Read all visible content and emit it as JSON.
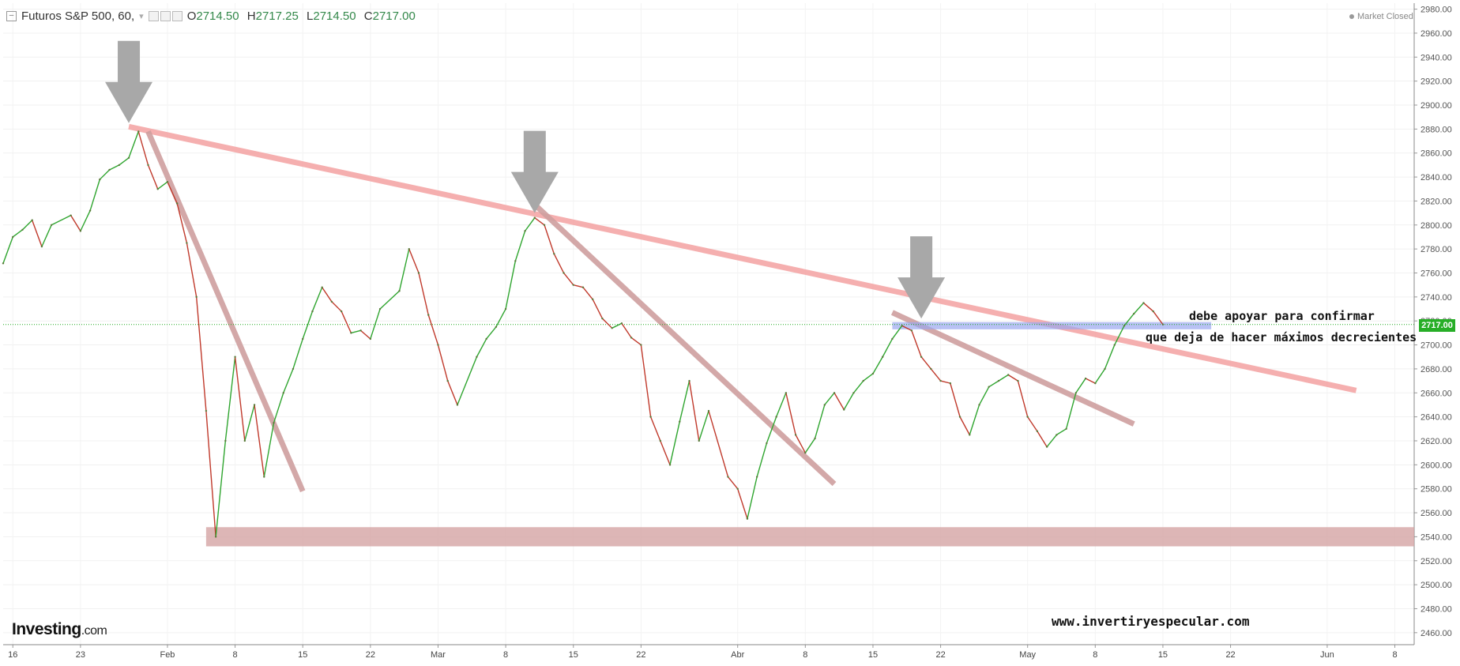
{
  "legend": {
    "symbol": "Futuros S&P 500, 60,",
    "open_label": "O",
    "open": "2714.50",
    "high_label": "H",
    "high": "2717.25",
    "low_label": "L",
    "low": "2714.50",
    "close_label": "C",
    "close": "2717.00"
  },
  "market_status": "Market Closed",
  "current_price_label": "2717.00",
  "logo": {
    "name": "Investing",
    "suffix": ".com"
  },
  "annotations": {
    "line1": "debe apoyar para confirmar",
    "line2": "que deja de hacer máximos decrecientes",
    "website": "www.invertiryespecular.com"
  },
  "colors": {
    "up": "#2fa52f",
    "down": "#c0392b",
    "trend": "#f5a7a7",
    "trend_short": "#cf9f9f",
    "support": "#d4a4a4",
    "support_blue": "#9aa6f0",
    "arrow": "#a8a8a8",
    "price_line": "#22aa22"
  },
  "chart_data": {
    "type": "line",
    "title": "",
    "xlabel": "",
    "ylabel": "",
    "ylim": [
      2450,
      2985
    ],
    "yticks": [
      2460,
      2480,
      2500,
      2520,
      2540,
      2560,
      2580,
      2600,
      2620,
      2640,
      2660,
      2680,
      2700,
      2720,
      2740,
      2760,
      2780,
      2800,
      2820,
      2840,
      2860,
      2880,
      2900,
      2920,
      2940,
      2960,
      2980
    ],
    "ytick_labels": [
      "2460.00",
      "2480.00",
      "2500.00",
      "2520.00",
      "2540.00",
      "2560.00",
      "2580.00",
      "2600.00",
      "2620.00",
      "2640.00",
      "2660.00",
      "2680.00",
      "2700.00",
      "2720.00",
      "2740.00",
      "2760.00",
      "2780.00",
      "2800.00",
      "2820.00",
      "2840.00",
      "2860.00",
      "2880.00",
      "2900.00",
      "2920.00",
      "2940.00",
      "2960.00",
      "2980.00"
    ],
    "x_axis": {
      "start": "2018-01-15",
      "end": "2018-06-10",
      "ticks": [
        {
          "date": "2018-01-16",
          "label": "16"
        },
        {
          "date": "2018-01-23",
          "label": "23"
        },
        {
          "date": "2018-02-01",
          "label": "Feb"
        },
        {
          "date": "2018-02-08",
          "label": "8"
        },
        {
          "date": "2018-02-15",
          "label": "15"
        },
        {
          "date": "2018-02-22",
          "label": "22"
        },
        {
          "date": "2018-03-01",
          "label": "Mar"
        },
        {
          "date": "2018-03-08",
          "label": "8"
        },
        {
          "date": "2018-03-15",
          "label": "15"
        },
        {
          "date": "2018-03-22",
          "label": "22"
        },
        {
          "date": "2018-04-01",
          "label": "Abr"
        },
        {
          "date": "2018-04-08",
          "label": "8"
        },
        {
          "date": "2018-04-15",
          "label": "15"
        },
        {
          "date": "2018-04-22",
          "label": "22"
        },
        {
          "date": "2018-05-01",
          "label": "May"
        },
        {
          "date": "2018-05-08",
          "label": "8"
        },
        {
          "date": "2018-05-15",
          "label": "15"
        },
        {
          "date": "2018-05-22",
          "label": "22"
        },
        {
          "date": "2018-06-01",
          "label": "Jun"
        },
        {
          "date": "2018-06-08",
          "label": "8"
        }
      ]
    },
    "series": [
      {
        "values": [
          [
            "2018-01-15",
            2768
          ],
          [
            "2018-01-16",
            2790
          ],
          [
            "2018-01-17",
            2796
          ],
          [
            "2018-01-18",
            2804
          ],
          [
            "2018-01-19",
            2782
          ],
          [
            "2018-01-20",
            2800
          ],
          [
            "2018-01-22",
            2808
          ],
          [
            "2018-01-23",
            2795
          ],
          [
            "2018-01-24",
            2812
          ],
          [
            "2018-01-25",
            2838
          ],
          [
            "2018-01-26",
            2846
          ],
          [
            "2018-01-27",
            2850
          ],
          [
            "2018-01-28",
            2856
          ],
          [
            "2018-01-29",
            2878
          ],
          [
            "2018-01-30",
            2850
          ],
          [
            "2018-01-31",
            2830
          ],
          [
            "2018-02-01",
            2836
          ],
          [
            "2018-02-02",
            2818
          ],
          [
            "2018-02-03",
            2785
          ],
          [
            "2018-02-04",
            2740
          ],
          [
            "2018-02-05",
            2645
          ],
          [
            "2018-02-06",
            2540
          ],
          [
            "2018-02-07",
            2620
          ],
          [
            "2018-02-08",
            2690
          ],
          [
            "2018-02-09",
            2620
          ],
          [
            "2018-02-10",
            2650
          ],
          [
            "2018-02-11",
            2590
          ],
          [
            "2018-02-12",
            2635
          ],
          [
            "2018-02-13",
            2660
          ],
          [
            "2018-02-14",
            2680
          ],
          [
            "2018-02-15",
            2705
          ],
          [
            "2018-02-16",
            2728
          ],
          [
            "2018-02-17",
            2748
          ],
          [
            "2018-02-18",
            2736
          ],
          [
            "2018-02-19",
            2728
          ],
          [
            "2018-02-20",
            2710
          ],
          [
            "2018-02-21",
            2712
          ],
          [
            "2018-02-22",
            2705
          ],
          [
            "2018-02-23",
            2730
          ],
          [
            "2018-02-25",
            2745
          ],
          [
            "2018-02-26",
            2780
          ],
          [
            "2018-02-27",
            2760
          ],
          [
            "2018-02-28",
            2725
          ],
          [
            "2018-03-01",
            2700
          ],
          [
            "2018-03-02",
            2670
          ],
          [
            "2018-03-03",
            2650
          ],
          [
            "2018-03-05",
            2690
          ],
          [
            "2018-03-06",
            2705
          ],
          [
            "2018-03-07",
            2715
          ],
          [
            "2018-03-08",
            2730
          ],
          [
            "2018-03-09",
            2770
          ],
          [
            "2018-03-10",
            2795
          ],
          [
            "2018-03-11",
            2806
          ],
          [
            "2018-03-12",
            2800
          ],
          [
            "2018-03-13",
            2776
          ],
          [
            "2018-03-14",
            2760
          ],
          [
            "2018-03-15",
            2750
          ],
          [
            "2018-03-16",
            2748
          ],
          [
            "2018-03-17",
            2738
          ],
          [
            "2018-03-18",
            2722
          ],
          [
            "2018-03-19",
            2714
          ],
          [
            "2018-03-20",
            2718
          ],
          [
            "2018-03-21",
            2706
          ],
          [
            "2018-03-22",
            2700
          ],
          [
            "2018-03-23",
            2640
          ],
          [
            "2018-03-24",
            2620
          ],
          [
            "2018-03-25",
            2600
          ],
          [
            "2018-03-26",
            2636
          ],
          [
            "2018-03-27",
            2670
          ],
          [
            "2018-03-28",
            2620
          ],
          [
            "2018-03-29",
            2645
          ],
          [
            "2018-03-31",
            2590
          ],
          [
            "2018-04-01",
            2580
          ],
          [
            "2018-04-02",
            2555
          ],
          [
            "2018-04-03",
            2590
          ],
          [
            "2018-04-04",
            2618
          ],
          [
            "2018-04-05",
            2640
          ],
          [
            "2018-04-06",
            2660
          ],
          [
            "2018-04-07",
            2625
          ],
          [
            "2018-04-08",
            2610
          ],
          [
            "2018-04-09",
            2622
          ],
          [
            "2018-04-10",
            2650
          ],
          [
            "2018-04-11",
            2660
          ],
          [
            "2018-04-12",
            2646
          ],
          [
            "2018-04-13",
            2660
          ],
          [
            "2018-04-14",
            2670
          ],
          [
            "2018-04-15",
            2676
          ],
          [
            "2018-04-16",
            2690
          ],
          [
            "2018-04-17",
            2705
          ],
          [
            "2018-04-18",
            2716
          ],
          [
            "2018-04-19",
            2712
          ],
          [
            "2018-04-20",
            2690
          ],
          [
            "2018-04-21",
            2680
          ],
          [
            "2018-04-22",
            2670
          ],
          [
            "2018-04-23",
            2668
          ],
          [
            "2018-04-24",
            2640
          ],
          [
            "2018-04-25",
            2625
          ],
          [
            "2018-04-26",
            2650
          ],
          [
            "2018-04-27",
            2665
          ],
          [
            "2018-04-28",
            2670
          ],
          [
            "2018-04-29",
            2675
          ],
          [
            "2018-04-30",
            2670
          ],
          [
            "2018-05-01",
            2640
          ],
          [
            "2018-05-02",
            2628
          ],
          [
            "2018-05-03",
            2615
          ],
          [
            "2018-05-04",
            2625
          ],
          [
            "2018-05-05",
            2630
          ],
          [
            "2018-05-06",
            2660
          ],
          [
            "2018-05-07",
            2672
          ],
          [
            "2018-05-08",
            2668
          ],
          [
            "2018-05-09",
            2680
          ],
          [
            "2018-05-10",
            2700
          ],
          [
            "2018-05-11",
            2716
          ],
          [
            "2018-05-12",
            2726
          ],
          [
            "2018-05-13",
            2735
          ],
          [
            "2018-05-14",
            2728
          ],
          [
            "2018-05-15",
            2717
          ]
        ]
      }
    ],
    "overlays": {
      "downtrend_main": [
        [
          "2018-01-28",
          2882
        ],
        [
          "2018-06-04",
          2662
        ]
      ],
      "downtrend_1": [
        [
          "2018-01-30",
          2878
        ],
        [
          "2018-02-15",
          2578
        ]
      ],
      "downtrend_2": [
        [
          "2018-03-11",
          2817
        ],
        [
          "2018-04-11",
          2584
        ]
      ],
      "downtrend_3": [
        [
          "2018-04-17",
          2727
        ],
        [
          "2018-05-12",
          2634
        ]
      ],
      "support_zone": {
        "from": 2532,
        "to": 2548
      },
      "blue_zone": {
        "start": "2018-04-17",
        "end": "2018-05-20",
        "from": 2713,
        "to": 2719
      },
      "current_price": 2717,
      "arrows": [
        [
          "2018-01-28",
          2885
        ],
        [
          "2018-03-11",
          2810
        ],
        [
          "2018-04-20",
          2722
        ]
      ]
    }
  }
}
